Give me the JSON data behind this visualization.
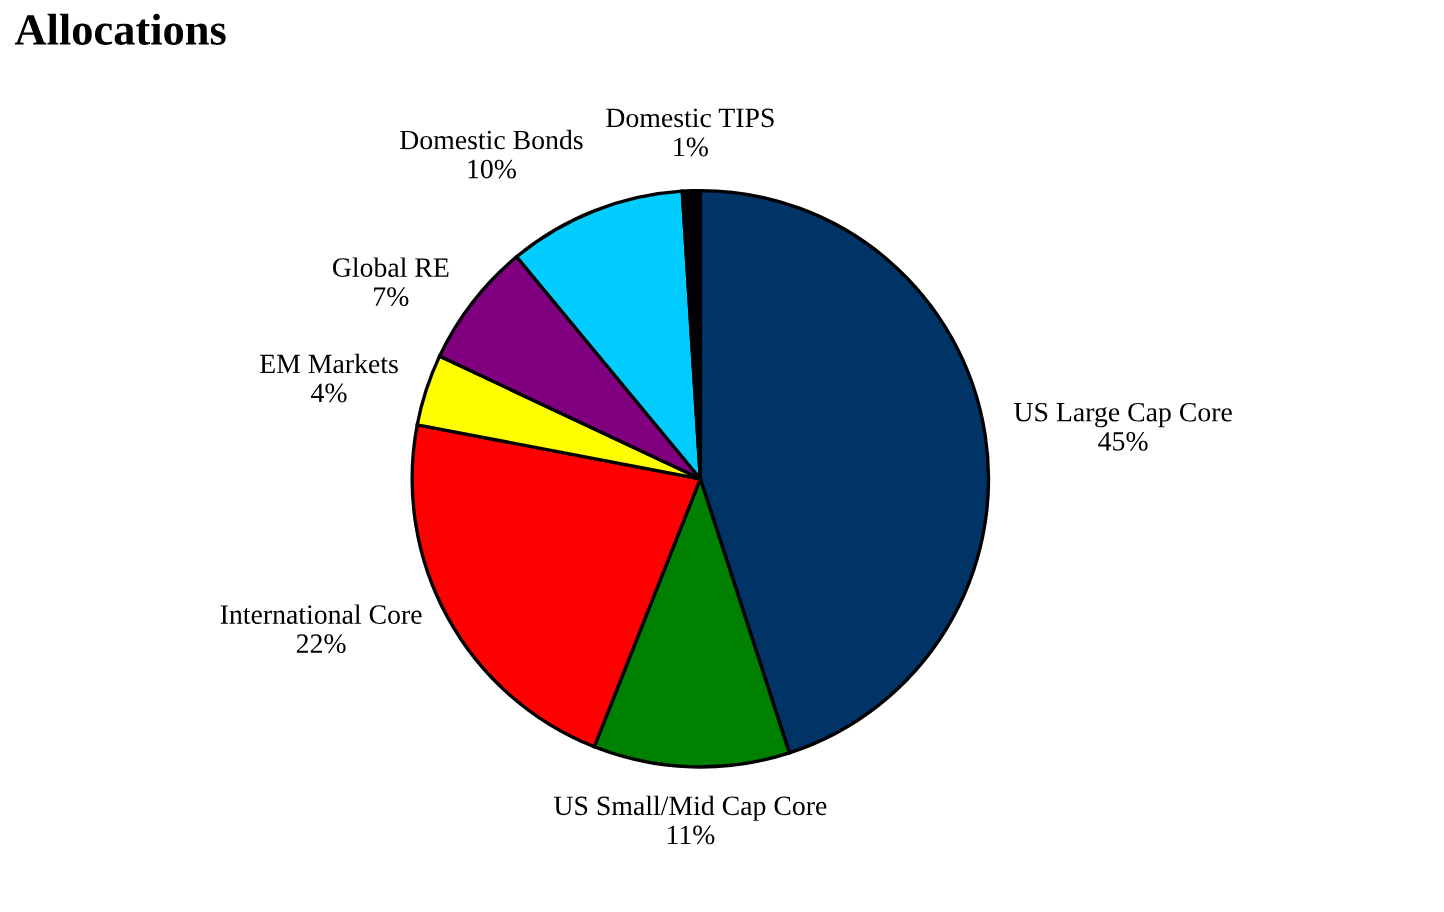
{
  "chart_data": {
    "type": "pie",
    "title": "Allocations",
    "categories": [
      "US Large Cap Core",
      "US Small/Mid Cap Core",
      "International Core",
      "EM Markets",
      "Global RE",
      "Domestic Bonds",
      "Domestic TIPS"
    ],
    "values": [
      45,
      11,
      22,
      4,
      7,
      10,
      1
    ],
    "value_labels": [
      "45%",
      "11%",
      "22%",
      "4%",
      "7%",
      "10%",
      "1%"
    ],
    "colors": [
      "#003366",
      "#008000",
      "#ff0000",
      "#ffff00",
      "#800080",
      "#00ccff",
      "#000000"
    ],
    "legend": false
  }
}
